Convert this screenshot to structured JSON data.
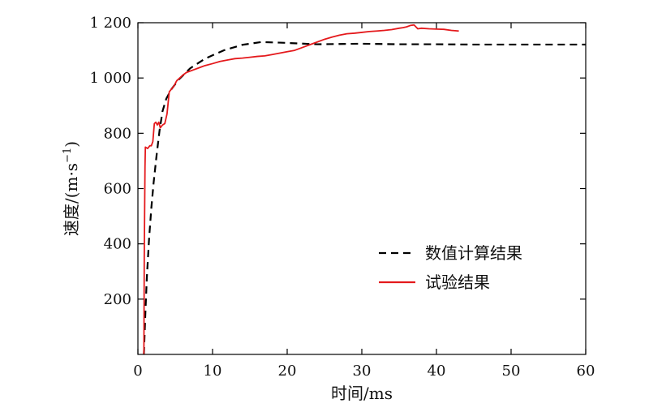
{
  "chart_data": {
    "type": "line",
    "xlabel": "时间/ms",
    "ylabel_main": "速度/(m·s",
    "ylabel_exp": "−1",
    "ylabel_close": ")",
    "xlim": [
      0,
      60
    ],
    "ylim": [
      0,
      1200
    ],
    "xticks": [
      0,
      10,
      20,
      30,
      40,
      50,
      60
    ],
    "xtick_labels": [
      "0",
      "10",
      "20",
      "30",
      "40",
      "50",
      "60"
    ],
    "yticks": [
      200,
      400,
      600,
      800,
      1000,
      1200
    ],
    "ytick_labels": [
      "200",
      "400",
      "600",
      "800",
      "1 000",
      "1 200"
    ],
    "grid": false,
    "legend_position": "center-right",
    "series": [
      {
        "name": "数值计算结果",
        "color": "#000000",
        "style": "dashed",
        "x": [
          0.8,
          1.0,
          1.2,
          1.5,
          1.8,
          2.1,
          2.5,
          2.9,
          3.3,
          3.8,
          4.5,
          5.5,
          7.0,
          9.0,
          11.5,
          14.0,
          16.5,
          19.0,
          21.5,
          24.0,
          27.0,
          30.0,
          35.0,
          40.0,
          45.0,
          50.0,
          55.0,
          60.0
        ],
        "y": [
          0,
          150,
          280,
          420,
          530,
          620,
          720,
          810,
          880,
          925,
          960,
          995,
          1035,
          1070,
          1100,
          1120,
          1130,
          1128,
          1125,
          1122,
          1123,
          1124,
          1122,
          1122,
          1121,
          1121,
          1121,
          1121
        ]
      },
      {
        "name": "试验结果",
        "color": "#e4191c",
        "style": "solid",
        "x": [
          0.8,
          0.85,
          0.95,
          1.0,
          1.3,
          1.6,
          1.8,
          2.0,
          2.2,
          2.4,
          2.6,
          2.8,
          3.0,
          3.3,
          3.6,
          3.9,
          4.2,
          4.5,
          4.8,
          5.2,
          5.6,
          6.0,
          6.5,
          7.0,
          7.5,
          8.0,
          8.5,
          9.0,
          10.0,
          11.0,
          12.0,
          13.0,
          14.0,
          15.0,
          16.0,
          17.0,
          18.0,
          19.0,
          20.0,
          21.0,
          22.0,
          23.0,
          24.0,
          25.0,
          26.0,
          27.0,
          28.0,
          29.0,
          30.0,
          31.0,
          32.0,
          33.0,
          34.0,
          35.0,
          35.5,
          36.0,
          36.5,
          37.0,
          37.5,
          38.0,
          39.0,
          40.0,
          41.0,
          42.0,
          43.0
        ],
        "y": [
          0,
          350,
          680,
          750,
          745,
          755,
          755,
          770,
          835,
          840,
          830,
          840,
          820,
          830,
          835,
          870,
          950,
          960,
          970,
          990,
          1000,
          1010,
          1020,
          1025,
          1030,
          1035,
          1040,
          1045,
          1052,
          1060,
          1065,
          1070,
          1072,
          1075,
          1078,
          1080,
          1085,
          1090,
          1095,
          1100,
          1110,
          1120,
          1130,
          1140,
          1148,
          1155,
          1160,
          1162,
          1165,
          1168,
          1170,
          1172,
          1175,
          1180,
          1182,
          1185,
          1190,
          1192,
          1178,
          1180,
          1178,
          1177,
          1176,
          1172,
          1170
        ]
      }
    ]
  }
}
